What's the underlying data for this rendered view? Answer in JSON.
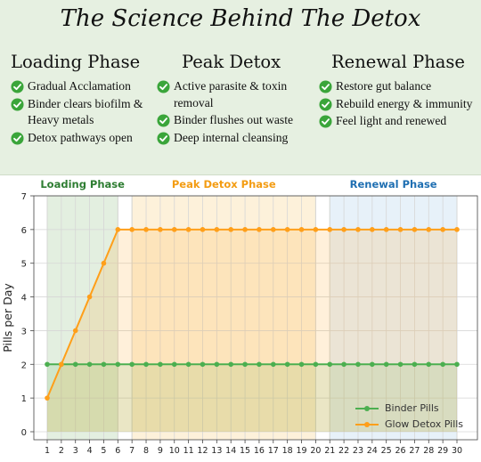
{
  "header": {
    "title": "The Science Behind The Detox",
    "phases": [
      {
        "title": "Loading Phase",
        "items": [
          "Gradual Acclamation",
          "Binder clears biofilm & Heavy metals",
          "Detox pathways open"
        ]
      },
      {
        "title": "Peak Detox",
        "items": [
          "Active parasite & toxin removal",
          "Binder flushes out waste",
          "Deep internal cleansing"
        ]
      },
      {
        "title": "Renewal Phase",
        "items": [
          "Restore gut balance",
          "Rebuild energy & immunity",
          "Feel light and renewed"
        ]
      }
    ]
  },
  "colors": {
    "header_bg": "#e6f0e1",
    "check": "#3aa53a",
    "binder": "#4caf50",
    "glow": "#ff9f1a",
    "loading_label": "#2e7d32",
    "peak_label": "#f39c12",
    "renewal_label": "#1f6fb2"
  },
  "chart_data": {
    "type": "line",
    "ylabel": "Pills per Day",
    "xlabel": "",
    "x": [
      1,
      2,
      3,
      4,
      5,
      6,
      7,
      8,
      9,
      10,
      11,
      12,
      13,
      14,
      15,
      16,
      17,
      18,
      19,
      20,
      21,
      22,
      23,
      24,
      25,
      26,
      27,
      28,
      29,
      30
    ],
    "ylim": [
      0,
      7
    ],
    "yticks": [
      0,
      1,
      2,
      3,
      4,
      5,
      6,
      7
    ],
    "grid": true,
    "legend_position": "bottom-right",
    "phase_bands": [
      {
        "label": "Loading Phase",
        "start": 1,
        "end": 6
      },
      {
        "label": "Peak Detox Phase",
        "start": 7,
        "end": 20
      },
      {
        "label": "Renewal Phase",
        "start": 21,
        "end": 30
      }
    ],
    "series": [
      {
        "name": "Binder Pills",
        "values": [
          2,
          2,
          2,
          2,
          2,
          2,
          2,
          2,
          2,
          2,
          2,
          2,
          2,
          2,
          2,
          2,
          2,
          2,
          2,
          2,
          2,
          2,
          2,
          2,
          2,
          2,
          2,
          2,
          2,
          2
        ]
      },
      {
        "name": "Glow Detox Pills",
        "values": [
          1,
          2,
          3,
          4,
          5,
          6,
          6,
          6,
          6,
          6,
          6,
          6,
          6,
          6,
          6,
          6,
          6,
          6,
          6,
          6,
          6,
          6,
          6,
          6,
          6,
          6,
          6,
          6,
          6,
          6
        ]
      }
    ]
  }
}
